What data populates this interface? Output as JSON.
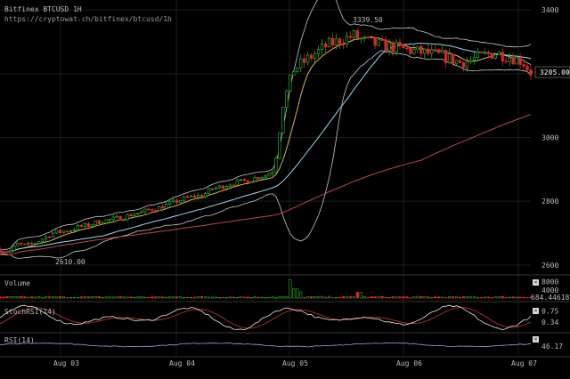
{
  "header": {
    "title": "Bitfinex BTCUSD 1H",
    "source": "https://cryptowat.ch/bitfinex/btcusd/1h"
  },
  "colors": {
    "background": "#000000",
    "up": "#2ea52e",
    "down": "#d62828",
    "grid": "#1c1c1c",
    "bollinger": "#c8c8c8",
    "ma_fast": "#e8c46a",
    "ma_mid": "#9ad7ee",
    "ma_slow": "#b84a48",
    "price_tag": "#ffffff",
    "stoch_k": "#e6e6e6",
    "stoch_d": "#c0392b",
    "rsi": "#9aa4e0"
  },
  "chart_data": [
    {
      "type": "candlestick",
      "title": "Bitfinex BTCUSD 1H",
      "ylim": [
        2580,
        3420
      ],
      "ytick_labels": [
        "2600",
        "2800",
        "3000",
        "3200",
        "3400"
      ],
      "yticks": [
        2600,
        2800,
        3000,
        3200,
        3400
      ],
      "x_labels": [
        "Aug 03",
        "Aug 04",
        "Aug 05",
        "Aug 06",
        "Aug 07"
      ],
      "annotations": {
        "high": "3339.50",
        "low": "2610.00"
      },
      "last_price": "3205.00",
      "last_price_value": 3205,
      "grid": true,
      "anchors": {
        "t": [
          0,
          10,
          20,
          30,
          40,
          50,
          60,
          70,
          80,
          90,
          100,
          110,
          120,
          130,
          140,
          150,
          160,
          170,
          180,
          190,
          200,
          210,
          220,
          230,
          240,
          250,
          260,
          270,
          280,
          290,
          300,
          310,
          320,
          330,
          340,
          350,
          360,
          370,
          380,
          390,
          400,
          410,
          420,
          430,
          440,
          450,
          460,
          470,
          480,
          490,
          500,
          510,
          520,
          530,
          540,
          550,
          560,
          570,
          580,
          590,
          600
        ],
        "close": [
          2650,
          2640,
          2665,
          2660,
          2670,
          2685,
          2700,
          2705,
          2710,
          2720,
          2725,
          2735,
          2740,
          2745,
          2750,
          2760,
          2765,
          2775,
          2780,
          2790,
          2800,
          2810,
          2815,
          2820,
          2840,
          2845,
          2855,
          2860,
          2865,
          2875,
          2880,
          2900,
          3100,
          3210,
          3230,
          3250,
          3270,
          3290,
          3300,
          3310,
          3320,
          3305,
          3295,
          3290,
          3285,
          3280,
          3275,
          3270,
          3265,
          3260,
          3255,
          3245,
          3235,
          3240,
          3250,
          3260,
          3265,
          3258,
          3250,
          3240,
          3205
        ]
      }
    },
    {
      "type": "bar",
      "title": "Volume",
      "yticks": [
        4000,
        8000
      ],
      "ytick_labels": [
        "4000",
        "8000"
      ],
      "last_label": "684.44618",
      "ylim": [
        0,
        10000
      ],
      "base": 600,
      "spikes": [
        {
          "t": 330,
          "value": 9000
        },
        {
          "t": 335,
          "value": 4500
        },
        {
          "t": 340,
          "value": 3000
        },
        {
          "t": 405,
          "value": 2800
        }
      ]
    },
    {
      "type": "line",
      "title": "StochRSI(14)",
      "yticks": [
        0.34,
        0.75
      ],
      "ytick_labels": [
        "0.34",
        "0.75"
      ],
      "ylim": [
        0,
        1
      ]
    },
    {
      "type": "line",
      "title": "RSI(14)",
      "yticks": [
        46.17
      ],
      "ytick_labels": [
        "46.17"
      ],
      "ylim": [
        0,
        100
      ]
    }
  ]
}
